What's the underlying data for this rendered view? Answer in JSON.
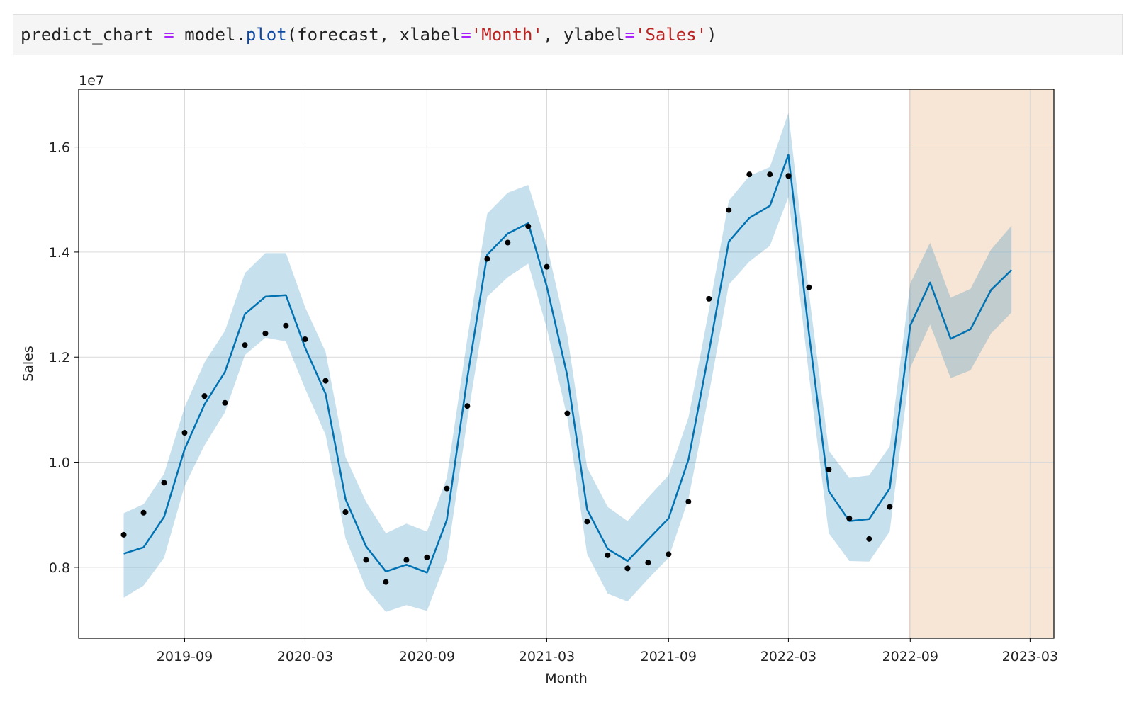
{
  "code": {
    "var": "predict_chart",
    "eq1": " = ",
    "obj": "model.",
    "fn": "plot",
    "open": "(forecast, xlabel",
    "eq2": "=",
    "str1": "'Month'",
    "mid": ", ylabel",
    "eq3": "=",
    "str2": "'Sales'",
    "close": ")"
  },
  "chart_data": {
    "type": "line",
    "xlabel": "Month",
    "ylabel": "Sales",
    "y_exponent_label": "1e7",
    "x_ticks": [
      "2019-09",
      "2020-03",
      "2020-09",
      "2021-03",
      "2021-09",
      "2022-03",
      "2022-09",
      "2023-03"
    ],
    "y_ticks": [
      0.8,
      1.0,
      1.2,
      1.4,
      1.6
    ],
    "y_tick_labels": [
      "0.8",
      "1.0",
      "1.2",
      "1.4",
      "1.6"
    ],
    "xlim": [
      "2019-03-25",
      "2023-04-06"
    ],
    "ylim": [
      0.665,
      1.71
    ],
    "y_scale": "x1e7",
    "grid": true,
    "forecast_region_start": "2022-08-31",
    "colors": {
      "forecast_line": "#0072B2",
      "interval_fill": "#0072B2",
      "points": "#000000",
      "forecast_region": "#f7e6d6",
      "grid": "#d9d9d9"
    },
    "x": [
      "2019-06",
      "2019-07",
      "2019-08",
      "2019-09",
      "2019-10",
      "2019-11",
      "2019-12",
      "2020-01",
      "2020-02",
      "2020-03",
      "2020-04",
      "2020-05",
      "2020-06",
      "2020-07",
      "2020-08",
      "2020-09",
      "2020-10",
      "2020-11",
      "2020-12",
      "2021-01",
      "2021-02",
      "2021-03",
      "2021-04",
      "2021-05",
      "2021-06",
      "2021-07",
      "2021-08",
      "2021-09",
      "2021-10",
      "2021-11",
      "2021-12",
      "2022-01",
      "2022-02",
      "2022-03",
      "2022-04",
      "2022-05",
      "2022-06",
      "2022-07",
      "2022-08",
      "2022-09",
      "2022-10",
      "2022-11",
      "2022-12",
      "2023-01",
      "2023-02"
    ],
    "yhat": [
      0.826,
      0.838,
      0.896,
      1.025,
      1.11,
      1.172,
      1.282,
      1.315,
      1.318,
      1.218,
      1.13,
      0.93,
      0.84,
      0.792,
      0.805,
      0.79,
      0.89,
      1.16,
      1.395,
      1.435,
      1.455,
      1.335,
      1.165,
      0.91,
      0.835,
      0.812,
      0.853,
      0.893,
      1.005,
      1.21,
      1.42,
      1.465,
      1.488,
      1.585,
      1.245,
      0.945,
      0.888,
      0.892,
      0.95,
      1.26,
      1.342,
      1.235,
      1.253,
      1.328,
      1.366
    ],
    "yhat_lower": [
      0.742,
      0.765,
      0.818,
      0.955,
      1.032,
      1.095,
      1.204,
      1.237,
      1.23,
      1.14,
      1.052,
      0.855,
      0.76,
      0.715,
      0.728,
      0.717,
      0.815,
      1.08,
      1.315,
      1.352,
      1.378,
      1.255,
      1.085,
      0.825,
      0.75,
      0.735,
      0.778,
      0.818,
      0.93,
      1.13,
      1.338,
      1.382,
      1.412,
      1.505,
      1.165,
      0.865,
      0.812,
      0.811,
      0.868,
      1.18,
      1.262,
      1.16,
      1.175,
      1.245,
      1.285
    ],
    "yhat_upper": [
      0.903,
      0.92,
      0.978,
      1.105,
      1.19,
      1.25,
      1.36,
      1.398,
      1.398,
      1.295,
      1.21,
      1.01,
      0.925,
      0.865,
      0.883,
      0.868,
      0.97,
      1.235,
      1.473,
      1.513,
      1.528,
      1.415,
      1.242,
      0.99,
      0.915,
      0.888,
      0.933,
      0.975,
      1.085,
      1.29,
      1.498,
      1.545,
      1.562,
      1.665,
      1.322,
      1.022,
      0.97,
      0.975,
      1.03,
      1.34,
      1.418,
      1.313,
      1.33,
      1.405,
      1.45
    ],
    "observed_x": [
      "2019-06",
      "2019-07",
      "2019-08",
      "2019-09",
      "2019-10",
      "2019-11",
      "2019-12",
      "2020-01",
      "2020-02",
      "2020-03",
      "2020-04",
      "2020-05",
      "2020-06",
      "2020-07",
      "2020-08",
      "2020-09",
      "2020-10",
      "2020-11",
      "2020-12",
      "2021-01",
      "2021-02",
      "2021-03",
      "2021-04",
      "2021-05",
      "2021-06",
      "2021-07",
      "2021-08",
      "2021-09",
      "2021-10",
      "2021-11",
      "2021-12",
      "2022-01",
      "2022-02",
      "2022-03",
      "2022-04",
      "2022-05",
      "2022-06",
      "2022-07",
      "2022-08"
    ],
    "observed_y": [
      0.862,
      0.904,
      0.961,
      1.056,
      1.126,
      1.113,
      1.223,
      1.245,
      1.26,
      1.234,
      1.155,
      0.905,
      0.814,
      0.772,
      0.814,
      0.819,
      0.95,
      1.107,
      1.387,
      1.418,
      1.449,
      1.372,
      1.093,
      0.887,
      0.823,
      0.798,
      0.809,
      0.825,
      0.925,
      1.311,
      1.48,
      1.548,
      1.548,
      1.545,
      1.333,
      0.986,
      0.893,
      0.854,
      0.915
    ]
  }
}
